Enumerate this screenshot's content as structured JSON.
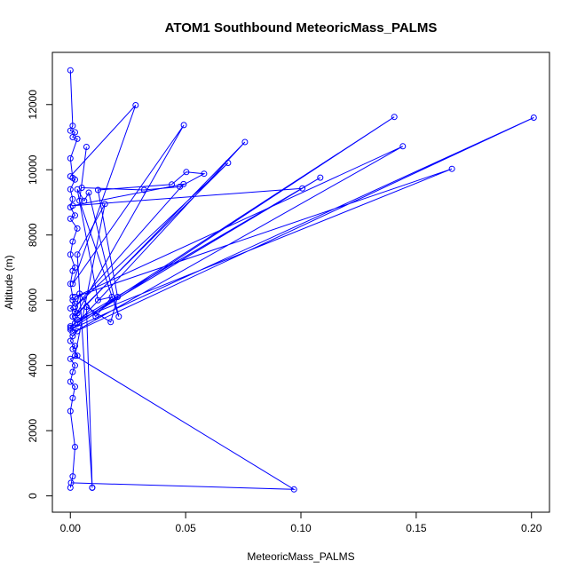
{
  "chart_data": {
    "type": "line",
    "title": "ATOM1 Southbound MeteoricMass_PALMS",
    "xlabel": "MeteoricMass_PALMS",
    "ylabel": "Altitude (m)",
    "xlim": [
      -0.0078,
      0.2078
    ],
    "ylim": [
      -500,
      13600
    ],
    "xticks": [
      0.0,
      0.05,
      0.1,
      0.15,
      0.2
    ],
    "xtick_labels": [
      "0.00",
      "0.05",
      "0.10",
      "0.15",
      "0.20"
    ],
    "yticks": [
      0,
      2000,
      4000,
      6000,
      8000,
      10000,
      12000
    ],
    "ytick_labels": [
      "0",
      "2000",
      "4000",
      "6000",
      "8000",
      "10000",
      "12000"
    ],
    "grid": false,
    "color": "#0000ff",
    "marker": "open-circle",
    "series": [
      {
        "x": [
          0.0,
          0.001,
          0.0,
          0.002,
          0.001,
          0.003,
          0.0,
          0.001,
          0.002,
          0.0,
          0.001,
          0.0,
          0.002,
          0.0,
          0.003,
          0.001,
          0.0,
          0.002,
          0.001,
          0.0,
          0.001
        ],
        "y": [
          13050,
          11350,
          11200,
          11150,
          11000,
          10950,
          10350,
          9750,
          9700,
          9400,
          9100,
          8850,
          8600,
          8500,
          8200,
          7800,
          7400,
          7000,
          6900,
          6500,
          6100
        ]
      },
      {
        "x": [
          0.001,
          0.002,
          0.0,
          0.003,
          0.001,
          0.002,
          0.0,
          0.003,
          0.001,
          0.0,
          0.002,
          0.001,
          0.003,
          0.0,
          0.002,
          0.001,
          0.0,
          0.002,
          0.001,
          0.0,
          0.002,
          0.001,
          0.0
        ],
        "y": [
          6000,
          5900,
          5750,
          5600,
          5500,
          5300,
          5150,
          5050,
          4900,
          4750,
          4600,
          4500,
          4300,
          4200,
          4000,
          3800,
          3500,
          3350,
          3000,
          2600,
          1500,
          600,
          250
        ]
      },
      {
        "x": [
          0.0,
          0.0283,
          0.001,
          0.0492,
          0.002,
          0.0757,
          0.003,
          0.1405,
          0.0,
          0.201,
          0.001,
          0.1442,
          0.002,
          0.1655,
          0.003,
          0.1084,
          0.0,
          0.1006,
          0.001,
          0.0491,
          0.002,
          0.0684,
          0.003
        ],
        "y": [
          9800,
          11980,
          6500,
          11370,
          5500,
          10850,
          5300,
          11620,
          5100,
          11600,
          5000,
          10720,
          6100,
          10030,
          5400,
          9760,
          5200,
          9430,
          8900,
          9560,
          5800,
          10210,
          5600
        ]
      },
      {
        "x": [
          0.005,
          0.032,
          0.0475,
          0.058,
          0.0503,
          0.044,
          0.012,
          0.0205,
          0.0175,
          0.007,
          0.0095,
          0.0095,
          0.003,
          0.015,
          0.002,
          0.097,
          0.0003
        ],
        "y": [
          9450,
          9380,
          9480,
          9880,
          9930,
          9550,
          9380,
          6100,
          5330,
          5800,
          250,
          250,
          7400,
          8950,
          4300,
          200,
          400
        ]
      },
      {
        "x": [
          0.007,
          0.004,
          0.021,
          0.008,
          0.006,
          0.003,
          0.012,
          0.018,
          0.011,
          0.004,
          0.002
        ],
        "y": [
          10700,
          9050,
          5500,
          9300,
          9050,
          9400,
          6000,
          6100,
          5500,
          6200,
          5650
        ]
      }
    ]
  }
}
